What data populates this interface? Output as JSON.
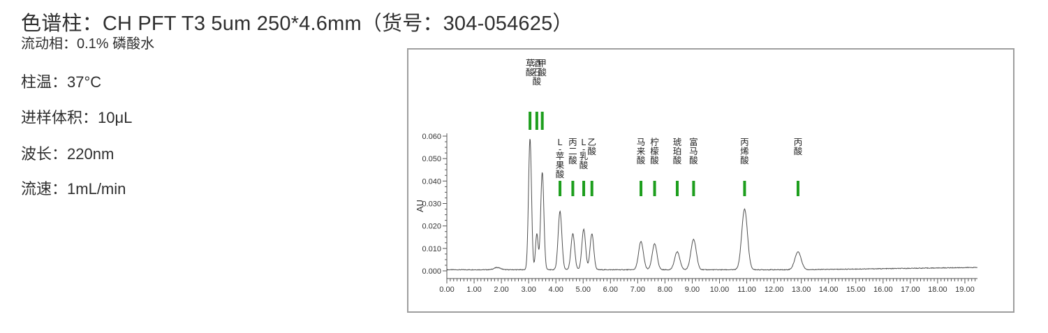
{
  "params": [
    {
      "id": "column",
      "label": "色谱柱：",
      "value": "CH PFT T3 5um 250*4.6mm（货号：304-054625）"
    },
    {
      "id": "mobile-phase",
      "label": "流动相：",
      "value": "0.1% 磷酸水"
    },
    {
      "id": "column-temp",
      "label": "柱温：",
      "value": "37°C"
    },
    {
      "id": "injection-volume",
      "label": "进样体积：",
      "value": "10μL"
    },
    {
      "id": "wavelength",
      "label": "波长：",
      "value": "220nm"
    },
    {
      "id": "flow-rate",
      "label": "流速：",
      "value": "1mL/min"
    }
  ],
  "chart_data": {
    "type": "line",
    "title": "",
    "xlabel": "",
    "ylabel": "AU",
    "xlim": [
      0,
      19.46
    ],
    "ylim": [
      0,
      0.06
    ],
    "grid": false,
    "legend": "none",
    "x_axis": {
      "major_step": 1.0,
      "minor_step": 0.125,
      "labels": [
        "0.00",
        "1.00",
        "2.00",
        "3.00",
        "4.00",
        "5.00",
        "6.00",
        "7.00",
        "8.00",
        "9.00",
        "10.00",
        "11.00",
        "12.00",
        "13.00",
        "14.00",
        "15.00",
        "16.00",
        "17.00",
        "18.00",
        "19.00"
      ]
    },
    "y_axis": {
      "major_step": 0.01,
      "minor_step": 0.0025,
      "labels": [
        "0.000",
        "0.010",
        "0.020",
        "0.030",
        "0.040",
        "0.050",
        "0.060"
      ]
    },
    "baseline_au": 0.0005,
    "trace_color": "#4f4f4f",
    "axis_color": "#555555",
    "label_color": "#333333",
    "marker_color": "#1d9e1d",
    "peaks": [
      {
        "name": "草酸",
        "rt": 3.05,
        "height": 0.0585,
        "sigma": 0.055,
        "group": "upper"
      },
      {
        "name": "酒石酸",
        "rt": 3.3,
        "height": 0.016,
        "sigma": 0.048,
        "group": "upper"
      },
      {
        "name": "甲酸",
        "rt": 3.5,
        "height": 0.0435,
        "sigma": 0.058,
        "group": "upper"
      },
      {
        "name": "L-苹果酸",
        "rt": 4.15,
        "height": 0.026,
        "sigma": 0.068,
        "group": "lower"
      },
      {
        "name": "丙二酸",
        "rt": 4.62,
        "height": 0.016,
        "sigma": 0.068,
        "group": "lower"
      },
      {
        "name": "L-乳酸",
        "rt": 5.02,
        "height": 0.018,
        "sigma": 0.068,
        "group": "lower"
      },
      {
        "name": "乙酸",
        "rt": 5.32,
        "height": 0.016,
        "sigma": 0.068,
        "group": "lower"
      },
      {
        "name": "马来酸",
        "rt": 7.12,
        "height": 0.0125,
        "sigma": 0.088,
        "group": "lower"
      },
      {
        "name": "柠檬酸",
        "rt": 7.62,
        "height": 0.0115,
        "sigma": 0.088,
        "group": "lower"
      },
      {
        "name": "琥珀酸",
        "rt": 8.45,
        "height": 0.008,
        "sigma": 0.095,
        "group": "lower"
      },
      {
        "name": "富马酸",
        "rt": 9.05,
        "height": 0.0135,
        "sigma": 0.098,
        "group": "lower"
      },
      {
        "name": "丙烯酸",
        "rt": 10.92,
        "height": 0.027,
        "sigma": 0.105,
        "group": "lower"
      },
      {
        "name": "丙酸",
        "rt": 12.88,
        "height": 0.008,
        "sigma": 0.115,
        "group": "lower"
      }
    ],
    "extra_bumps": [
      {
        "rt": 1.85,
        "height": 0.001,
        "sigma": 0.12
      }
    ]
  }
}
